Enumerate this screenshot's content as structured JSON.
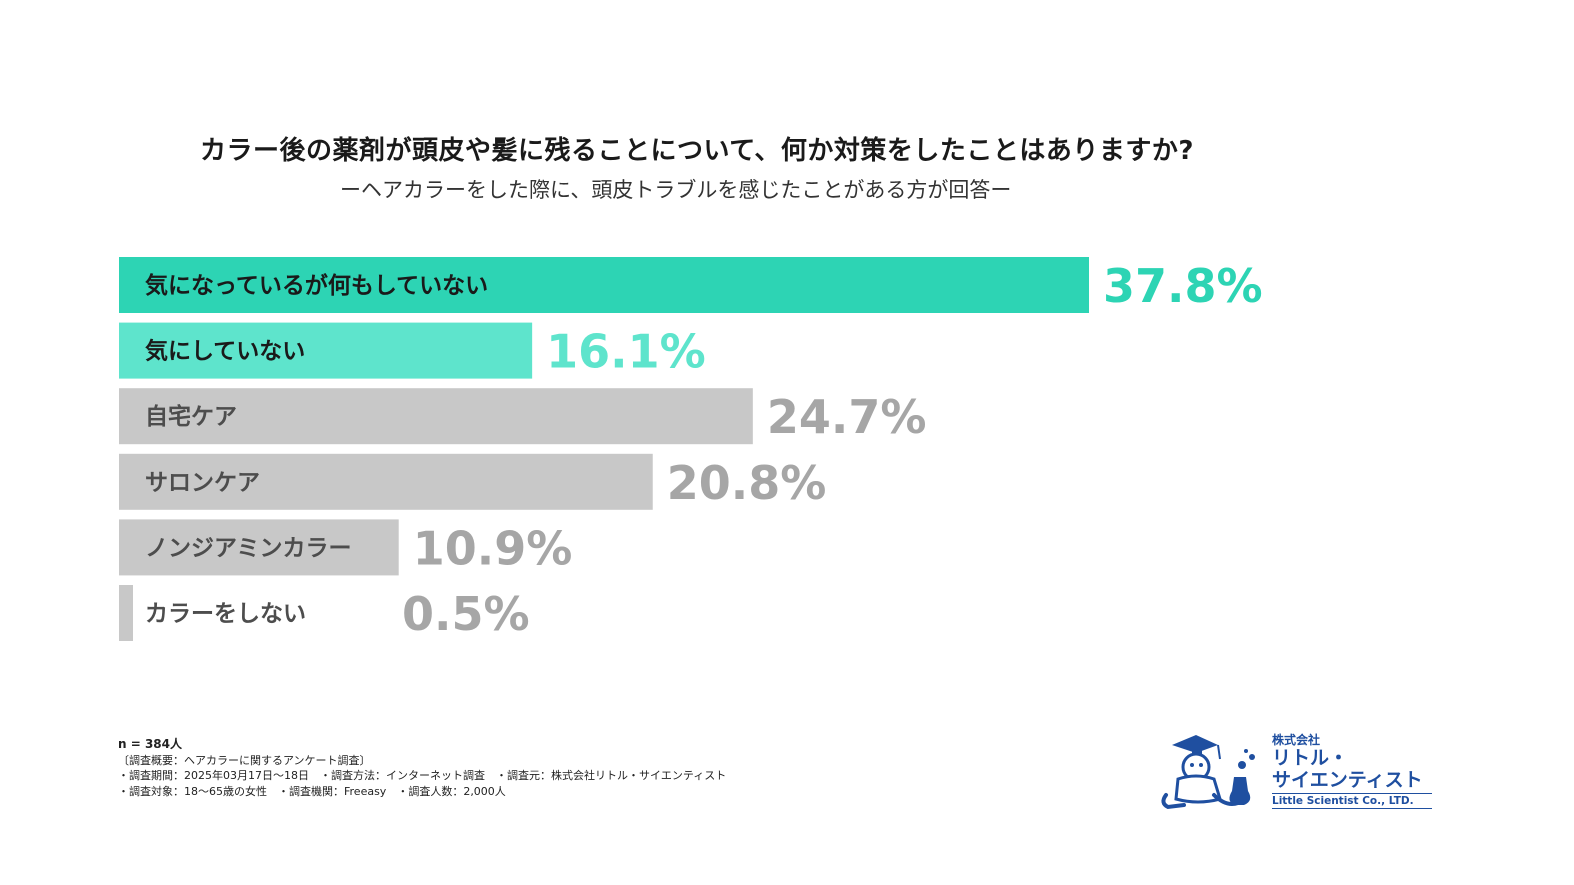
{
  "title": "カラー後の薬剤が頭皮や髪に残ることについて、何か対策をしたことはありますか?",
  "subtitle": "ーヘアカラーをした際に、頭皮トラブルを感じたことがある方が回答ー",
  "chart_data": {
    "type": "bar",
    "orientation": "horizontal",
    "categories": [
      "気になっているが何もしていない",
      "気にしていない",
      "自宅ケア",
      "サロンケア",
      "ノンジアミンカラー",
      "カラーをしない"
    ],
    "values": [
      37.8,
      16.1,
      24.7,
      20.8,
      10.9,
      0.5
    ],
    "value_labels": [
      "37.8%",
      "16.1%",
      "24.7%",
      "20.8%",
      "10.9%",
      "0.5%"
    ],
    "unit": "%",
    "bar_colors": [
      "#2dd4b4",
      "#5ee4cc",
      "#c8c8c8",
      "#c8c8c8",
      "#c8c8c8",
      "#c8c8c8"
    ],
    "value_colors": [
      "#2dd4b4",
      "#5ee4cc",
      "#a6a6a6",
      "#a6a6a6",
      "#a6a6a6",
      "#a6a6a6"
    ],
    "label_colors": [
      "#1a1a1a",
      "#1a1a1a",
      "#4d4d4d",
      "#4d4d4d",
      "#4d4d4d",
      "#4d4d4d"
    ],
    "xlim": [
      0,
      37.8
    ],
    "grid": false,
    "legend": "none"
  },
  "footnotes": {
    "n": "n = 384人",
    "lines": [
      "〔調査概要：ヘアカラーに関するアンケート調査〕",
      "・調査期間：2025年03月17日〜18日　・調査方法：インターネット調査　・調査元：株式会社リトル・サイエンティスト",
      "・調査対象：18〜65歳の女性　・調査機関：Freeasy　・調査人数：2,000人"
    ]
  },
  "logo": {
    "company_type": "株式会社",
    "name_line1": "リトル・",
    "name_line2": "サイエンティスト",
    "name_en": "Little Scientist Co., LTD.",
    "color": "#1f4fa0",
    "icon": "scientist-mascot-icon"
  }
}
